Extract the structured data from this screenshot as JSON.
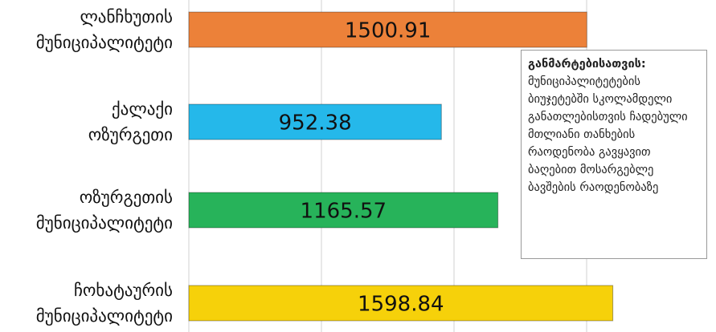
{
  "chart_data": {
    "type": "bar",
    "categories": [
      "ლანჩხუთის\nმუნიციპალიტეტი",
      "ქალაქი\nოზურგეთი",
      "ოზურგეთის\nმუნიციპალიტეტი",
      "ჩოხატაურის\nმუნიციპალიტეტი"
    ],
    "values": [
      1500.91,
      952.38,
      1165.57,
      1598.84
    ],
    "colors": [
      "#ec8139",
      "#25b8ea",
      "#27b35a",
      "#f6d10a"
    ],
    "xlim": [
      0,
      2000
    ],
    "xticks": [
      0,
      500,
      1000,
      1500,
      2000
    ],
    "grid": true,
    "annotation": {
      "title": "განმარტებისათვის:",
      "text": "მუნიციპალიტეტების ბიუჯეტებში სკოლამდელი განათლებისთვის ჩადებული მთლიანი თანხების რაოდენობა გავყავით ბაღებით მოსარგებლე ბავშების რაოდენობაზე"
    }
  }
}
